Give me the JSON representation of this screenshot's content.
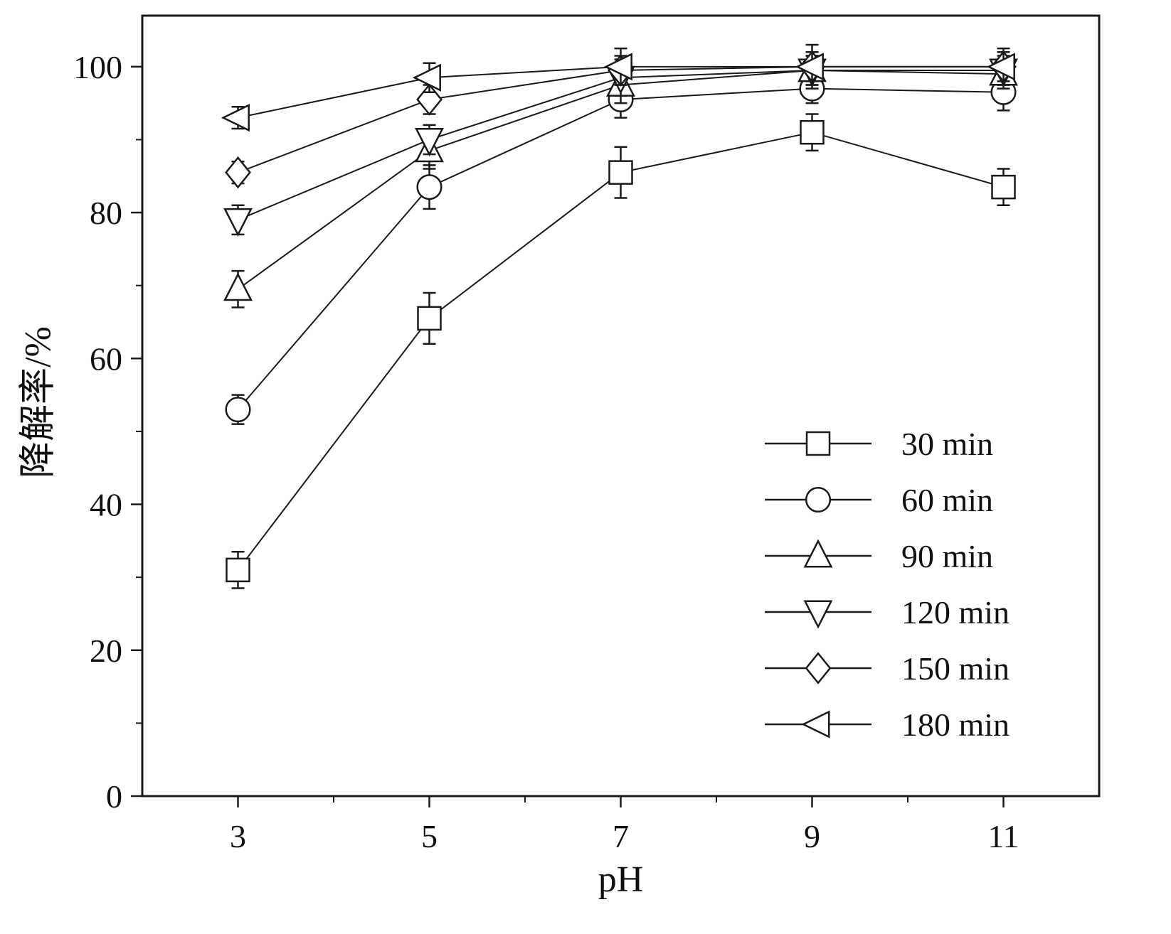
{
  "figure": {
    "background": "#ffffff",
    "ink": "#1a1a1a"
  },
  "chart_data": {
    "type": "line",
    "title": "",
    "xlabel": "pH",
    "ylabel": "降解率/%",
    "x": [
      3,
      5,
      7,
      9,
      11
    ],
    "xticks": [
      3,
      5,
      7,
      9,
      11
    ],
    "xminorticks": [
      4,
      6,
      8,
      10
    ],
    "yticks": [
      0,
      20,
      40,
      60,
      80,
      100
    ],
    "yminorticks": [
      10,
      30,
      50,
      70,
      90
    ],
    "xlim": [
      2,
      12
    ],
    "ylim": [
      0,
      107
    ],
    "grid": false,
    "legend_position": "lower right",
    "series": [
      {
        "name": "30 min",
        "marker": "square",
        "values": [
          31,
          65.5,
          85.5,
          91,
          83.5
        ],
        "errors": [
          2.5,
          3.5,
          3.5,
          2.5,
          2.5
        ]
      },
      {
        "name": "60 min",
        "marker": "circle",
        "values": [
          53,
          83.5,
          95.5,
          97,
          96.5
        ],
        "errors": [
          2,
          3,
          2.5,
          2,
          2.5
        ]
      },
      {
        "name": "90 min",
        "marker": "triangle-up",
        "values": [
          69.5,
          88.5,
          97.5,
          99.5,
          99
        ],
        "errors": [
          2.5,
          2.5,
          2.5,
          2,
          2
        ]
      },
      {
        "name": "120 min",
        "marker": "triangle-down",
        "values": [
          79,
          90,
          98.5,
          99.5,
          99.5
        ],
        "errors": [
          2,
          2,
          2.5,
          2,
          2
        ]
      },
      {
        "name": "150 min",
        "marker": "diamond",
        "values": [
          85.5,
          95.5,
          99.5,
          100,
          100
        ],
        "errors": [
          1.5,
          2,
          2,
          2,
          2
        ]
      },
      {
        "name": "180 min",
        "marker": "triangle-left",
        "values": [
          93,
          98.5,
          100,
          100,
          100
        ],
        "errors": [
          1.5,
          2,
          2.5,
          3,
          2.5
        ]
      }
    ]
  }
}
